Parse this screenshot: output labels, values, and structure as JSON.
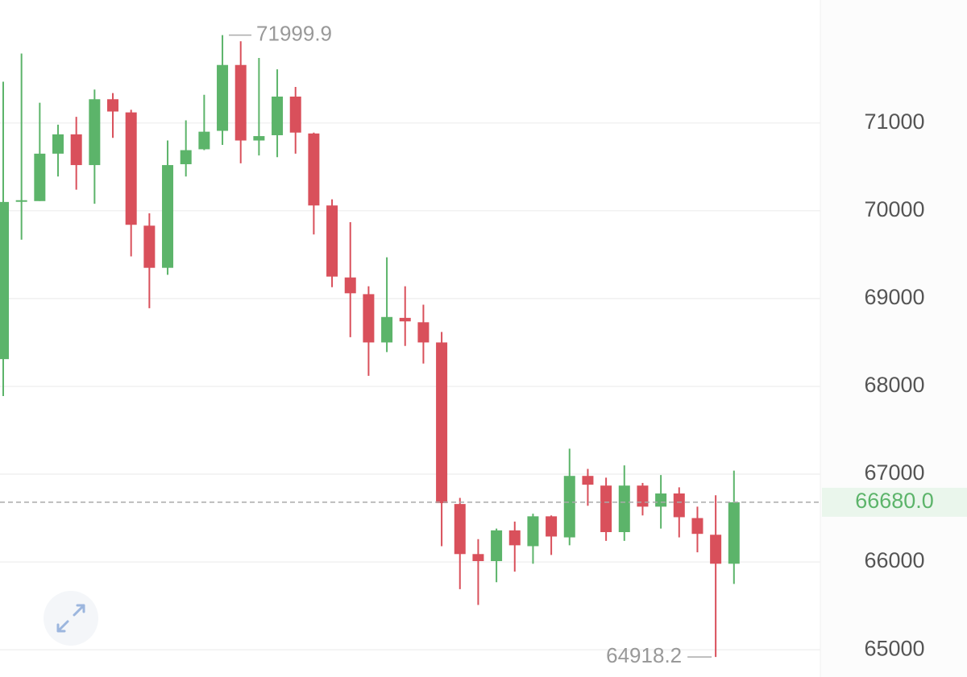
{
  "chart_data": {
    "type": "candlestick",
    "open": [
      68310,
      70110,
      70110,
      70650,
      70870,
      70520,
      71270,
      71120,
      69830,
      69350,
      70530,
      70700,
      70910,
      71660,
      70800,
      70860,
      71300,
      70880,
      70060,
      69240,
      69050,
      68500,
      68780,
      68730,
      68500,
      66660,
      66090,
      66010,
      66360,
      66180,
      66520,
      66280,
      66980,
      66870,
      66340,
      66870,
      66630,
      66780,
      66500,
      66310,
      65980
    ],
    "high": [
      71470,
      71790,
      71230,
      70980,
      71070,
      71380,
      71340,
      71150,
      69970,
      70800,
      71030,
      71320,
      71999.9,
      71930,
      71740,
      71610,
      71410,
      70890,
      70130,
      69870,
      69140,
      69470,
      69140,
      68930,
      68620,
      66730,
      66260,
      66380,
      66460,
      66550,
      66530,
      67290,
      67060,
      66960,
      67100,
      66900,
      66990,
      66850,
      66630,
      66760,
      67040
    ],
    "low": [
      67890,
      69670,
      70110,
      70390,
      70240,
      70080,
      70830,
      69480,
      68890,
      69270,
      70390,
      70690,
      70750,
      70540,
      70630,
      70610,
      70650,
      69730,
      69130,
      68560,
      68120,
      68390,
      68460,
      68260,
      66180,
      65690,
      65510,
      65770,
      65890,
      65980,
      66080,
      66190,
      66640,
      66240,
      66240,
      66530,
      66380,
      66280,
      66110,
      64918.2,
      65750
    ],
    "close": [
      70100,
      70120,
      70650,
      70870,
      70520,
      71270,
      71130,
      69840,
      69350,
      70520,
      70690,
      70900,
      71660,
      70800,
      70850,
      71300,
      70890,
      70060,
      69250,
      69060,
      68500,
      68790,
      68740,
      68500,
      66670,
      66090,
      66010,
      66360,
      66190,
      66520,
      66290,
      66980,
      66880,
      66340,
      66870,
      66630,
      66780,
      66510,
      66320,
      65980,
      66680
    ],
    "up_color": "#5cb46a",
    "down_color": "#d9505b",
    "ylim": [
      64690,
      72400
    ],
    "yticks": [
      65000,
      66000,
      67000,
      68000,
      69000,
      70000,
      71000
    ],
    "grid": true,
    "max_marker": 71999.9,
    "min_marker": 64918.2,
    "last_price": {
      "value": 66680,
      "label": "66680.0"
    }
  }
}
